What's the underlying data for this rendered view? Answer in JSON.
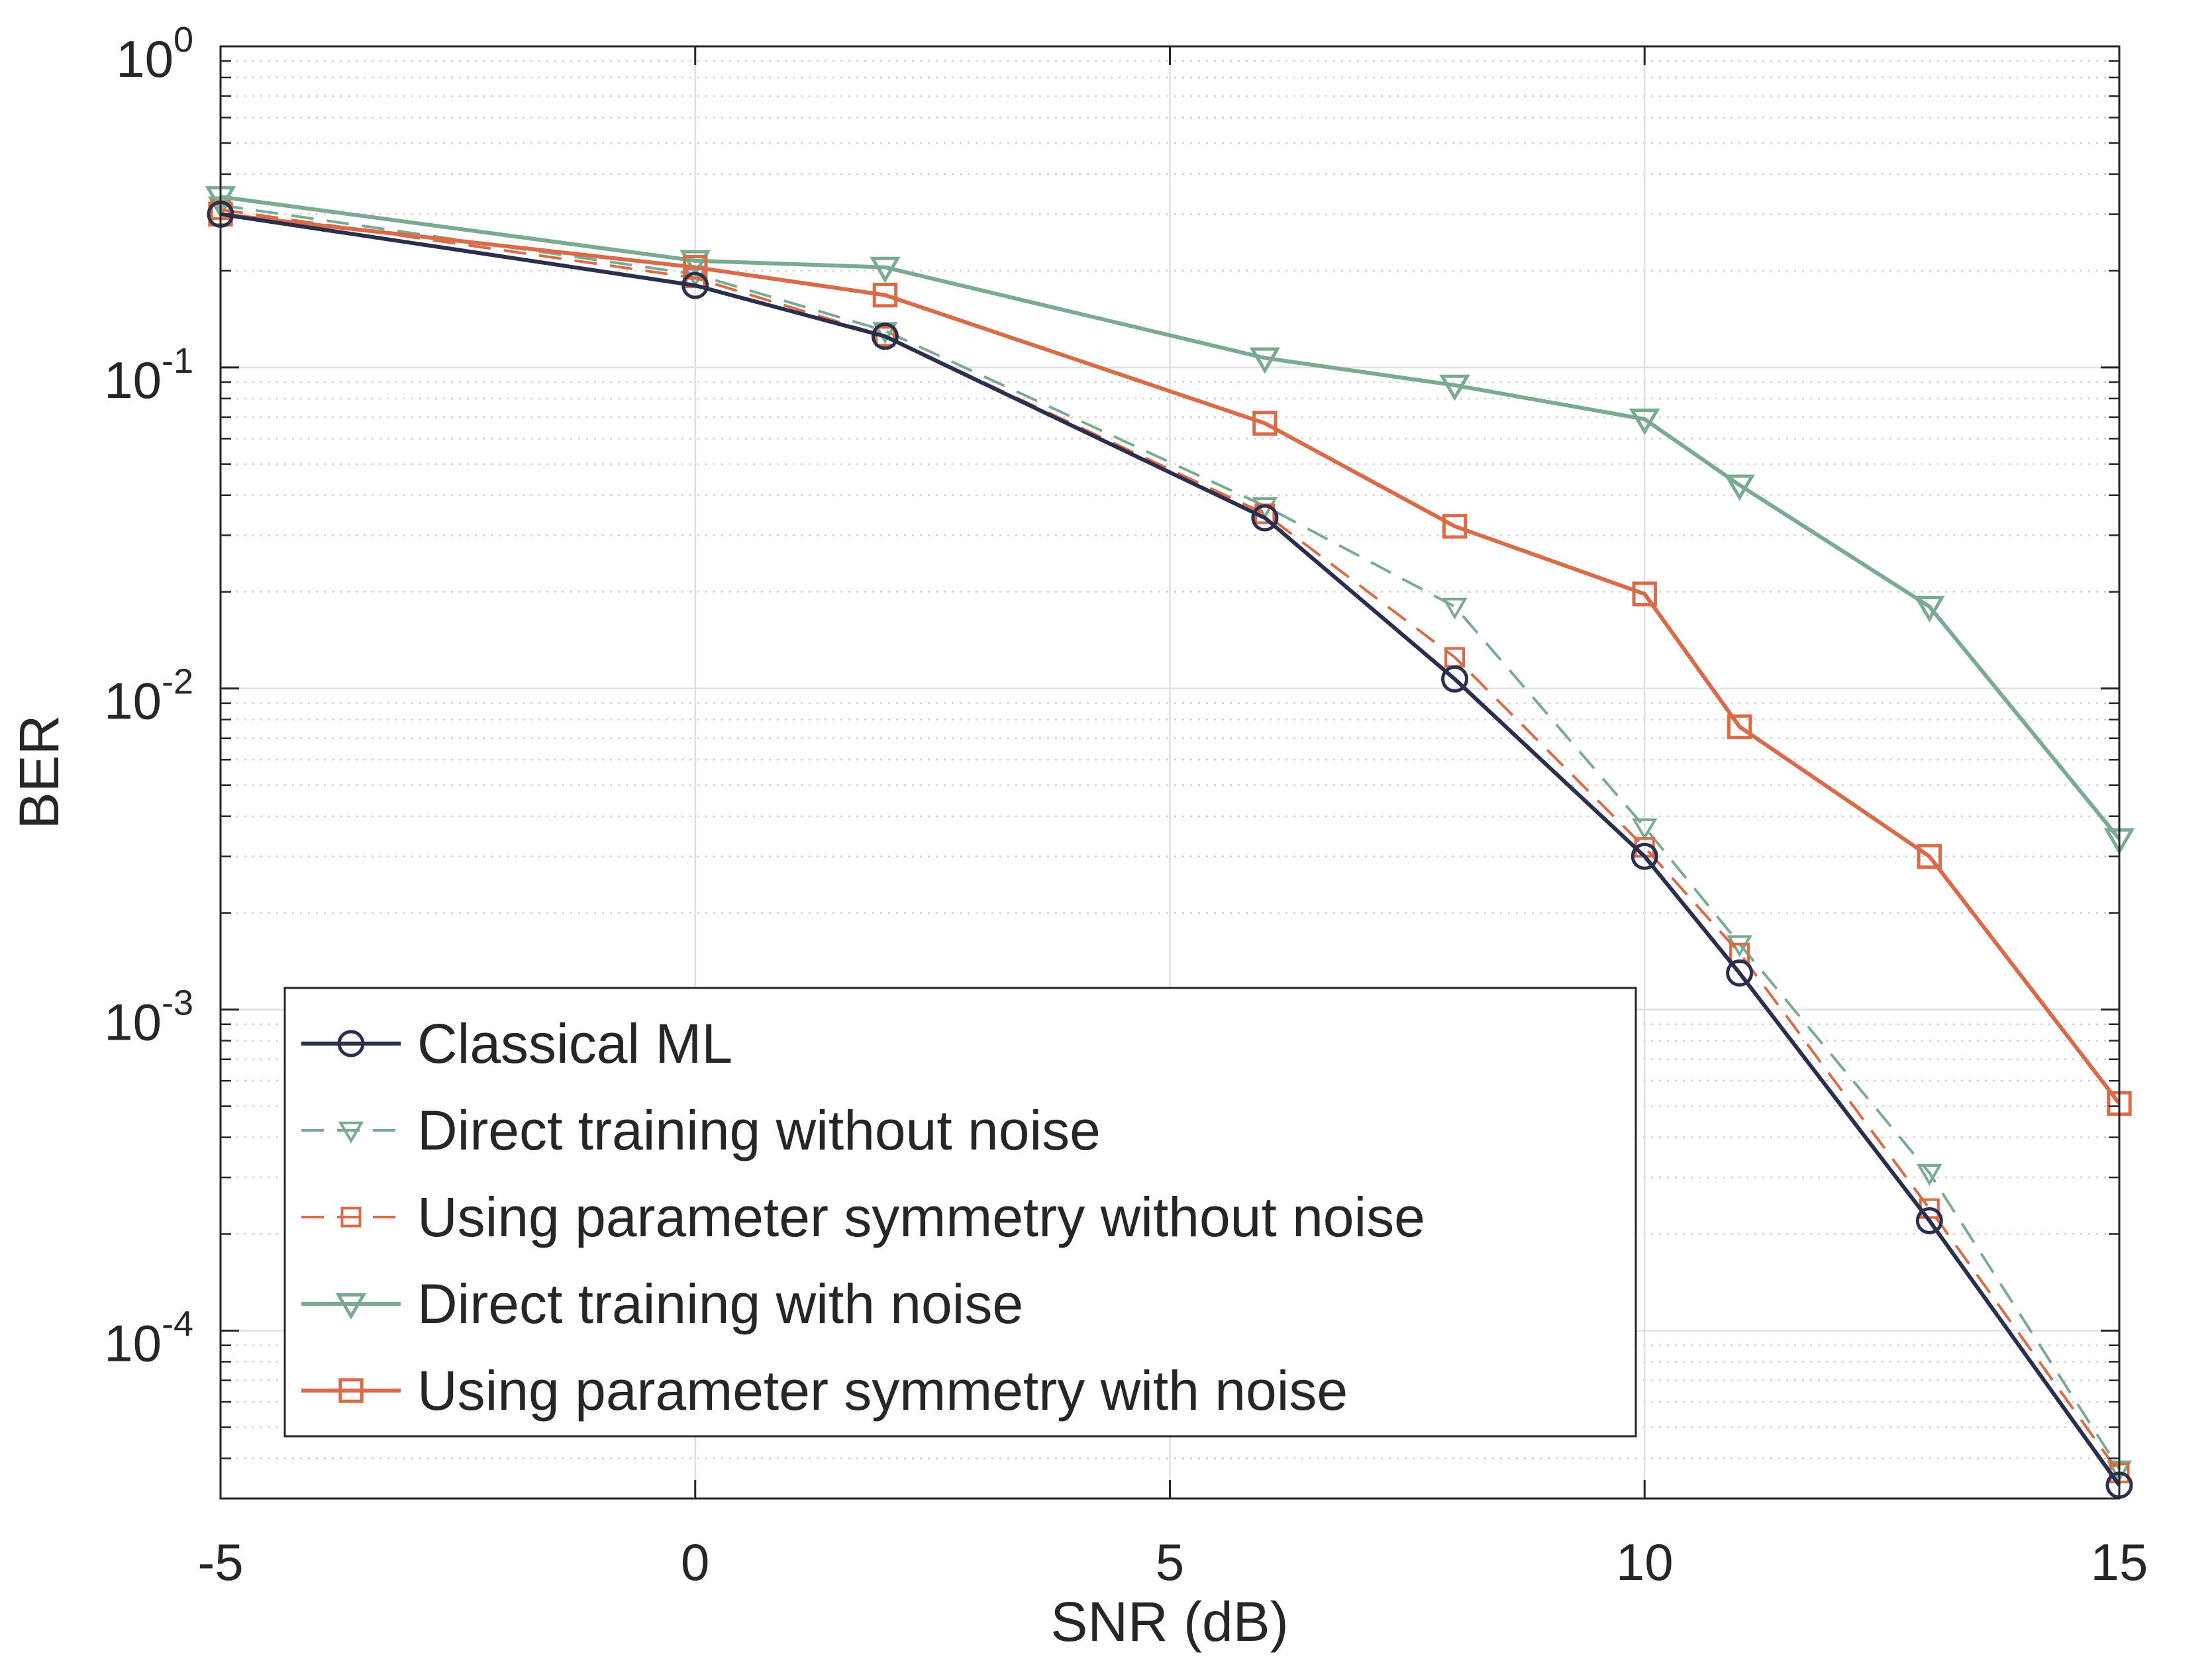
{
  "chart_data": {
    "type": "line",
    "title": "",
    "xlabel": "SNR (dB)",
    "ylabel": "BER",
    "xlim": [
      -5,
      15
    ],
    "ylim": [
      3e-05,
      1
    ],
    "yscale": "log",
    "grid": true,
    "minor_grid": true,
    "legend_position": "bottom-left",
    "x_ticks": [
      {
        "value": -5,
        "label": "-5"
      },
      {
        "value": 0,
        "label": "0"
      },
      {
        "value": 5,
        "label": "5"
      },
      {
        "value": 10,
        "label": "10"
      },
      {
        "value": 15,
        "label": "15"
      }
    ],
    "y_ticks": [
      {
        "value": 1,
        "base": "10",
        "exp": "0"
      },
      {
        "value": 0.1,
        "base": "10",
        "exp": "-1"
      },
      {
        "value": 0.01,
        "base": "10",
        "exp": "-2"
      },
      {
        "value": 0.001,
        "base": "10",
        "exp": "-3"
      },
      {
        "value": 0.0001,
        "base": "10",
        "exp": "-4"
      }
    ],
    "series": [
      {
        "name": "Classical ML",
        "color": "#2b2f4e",
        "dash": "solid",
        "marker": "circle",
        "x": [
          -5,
          0,
          2,
          6,
          8,
          10,
          11,
          13,
          15
        ],
        "y": [
          0.3,
          0.18,
          0.125,
          0.034,
          0.0107,
          0.003,
          0.0013,
          0.00022,
          3.3e-05
        ]
      },
      {
        "name": "Direct training without noise",
        "color": "#7aab91",
        "dash": "dashed",
        "marker": "triangle-down",
        "x": [
          -5,
          0,
          2,
          6,
          8,
          10,
          11,
          13,
          15
        ],
        "y": [
          0.32,
          0.195,
          0.13,
          0.037,
          0.018,
          0.0037,
          0.0016,
          0.00031,
          3.7e-05
        ]
      },
      {
        "name": "Using parameter symmetry without noise",
        "color": "#d96b48",
        "dash": "dashed",
        "marker": "square",
        "x": [
          -5,
          0,
          2,
          6,
          8,
          10,
          11,
          13,
          15
        ],
        "y": [
          0.31,
          0.19,
          0.125,
          0.035,
          0.0125,
          0.0032,
          0.0015,
          0.00024,
          3.6e-05
        ]
      },
      {
        "name": "Direct training with noise",
        "color": "#7aab91",
        "dash": "solid",
        "marker": "triangle-down",
        "x": [
          -5,
          0,
          2,
          6,
          8,
          10,
          11,
          13,
          15
        ],
        "y": [
          0.34,
          0.215,
          0.205,
          0.107,
          0.088,
          0.069,
          0.043,
          0.018,
          0.0034
        ]
      },
      {
        "name": "Using parameter symmetry with noise",
        "color": "#d96b48",
        "dash": "solid",
        "marker": "square",
        "x": [
          -5,
          0,
          2,
          6,
          8,
          10,
          11,
          13,
          15
        ],
        "y": [
          0.3,
          0.205,
          0.168,
          0.067,
          0.032,
          0.0197,
          0.0076,
          0.003,
          0.00051
        ]
      }
    ]
  }
}
